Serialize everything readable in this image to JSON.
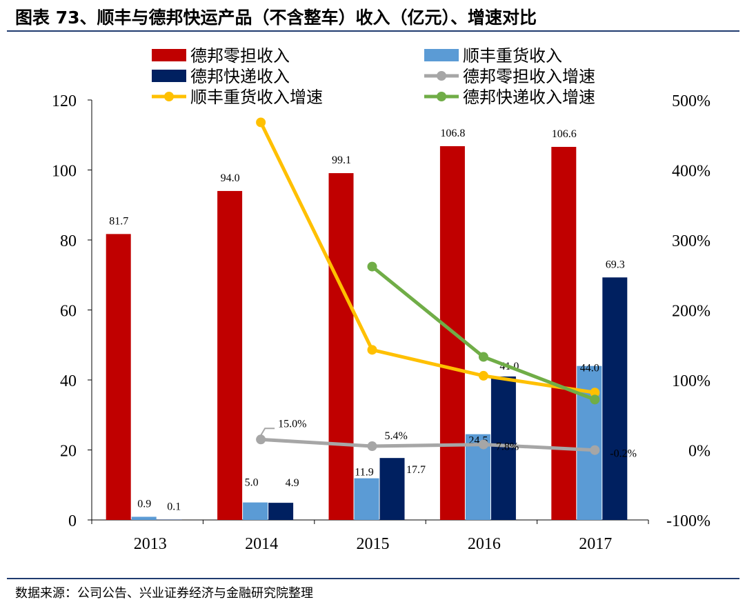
{
  "title": "图表 73、顺丰与德邦快运产品（不含整车）收入（亿元）、增速对比",
  "source": "数据来源：公司公告、兴业证券经济与金融研究院整理",
  "chart_data": {
    "type": "bar+line",
    "categories": [
      "2013",
      "2014",
      "2015",
      "2016",
      "2017"
    ],
    "y_left": {
      "range": [
        0,
        120
      ],
      "ticks": [
        "0",
        "20",
        "40",
        "60",
        "80",
        "100",
        "120"
      ]
    },
    "y_right": {
      "range": [
        -100,
        500
      ],
      "unit": "%",
      "ticks": [
        "-100%",
        "0%",
        "100%",
        "200%",
        "300%",
        "400%",
        "500%"
      ]
    },
    "bar_series": [
      {
        "name": "德邦零担收入",
        "color": "#c00000",
        "values": [
          81.7,
          94.0,
          99.1,
          106.8,
          106.6
        ],
        "labels": [
          "81.7",
          "94.0",
          "99.1",
          "106.8",
          "106.6"
        ]
      },
      {
        "name": "顺丰重货收入",
        "color": "#5b9bd5",
        "values": [
          0.9,
          5.0,
          11.9,
          24.5,
          44.0
        ],
        "labels": [
          "0.9",
          "5.0",
          "11.9",
          "24.5",
          "44.0"
        ]
      },
      {
        "name": "德邦快递收入",
        "color": "#002060",
        "values": [
          0.1,
          4.9,
          17.7,
          41.0,
          69.3
        ],
        "labels": [
          "0.1",
          "4.9",
          "17.7",
          "41.0",
          "69.3"
        ]
      }
    ],
    "line_series": [
      {
        "name": "德邦零担收入增速",
        "color": "#a6a6a6",
        "values": [
          null,
          15.0,
          5.4,
          7.8,
          -0.2
        ],
        "labels": [
          null,
          "15.0%",
          "5.4%",
          "7.8%",
          "-0.2%"
        ]
      },
      {
        "name": "顺丰重货收入增速",
        "color": "#ffc000",
        "values": [
          null,
          468,
          143,
          106,
          82
        ]
      },
      {
        "name": "德邦快递收入增速",
        "color": "#70ad47",
        "values": [
          null,
          null,
          262,
          133,
          72
        ]
      }
    ],
    "legend_placement": "top",
    "grid": false
  }
}
